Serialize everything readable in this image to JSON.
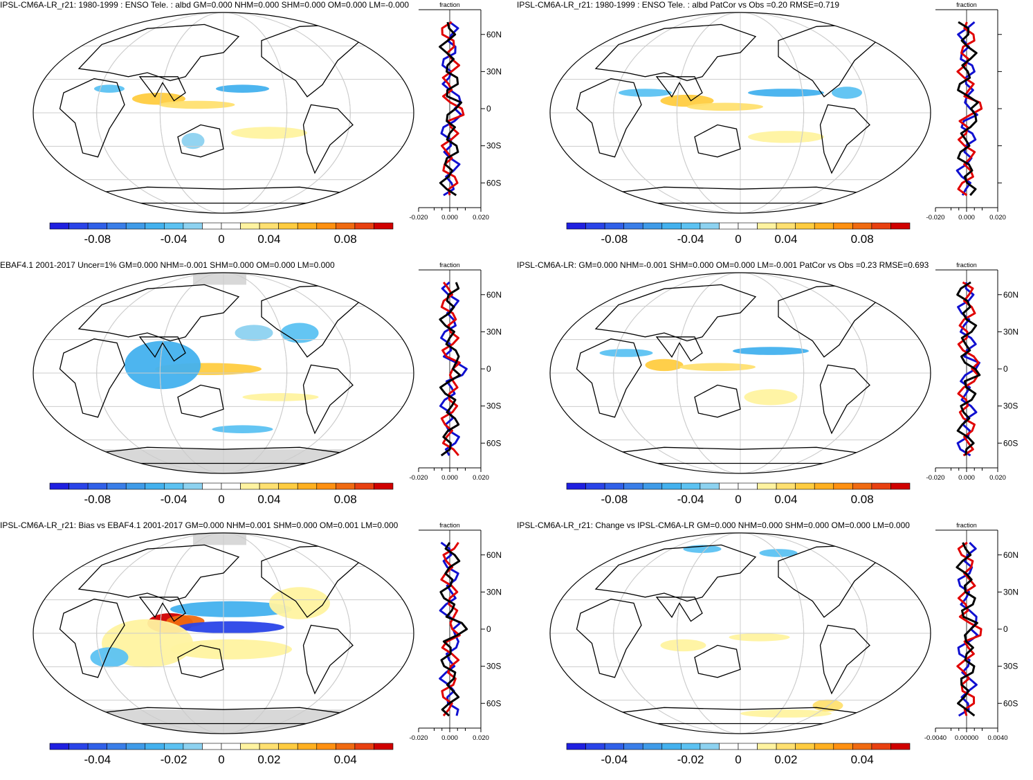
{
  "figure": {
    "panels": [
      {
        "id": "model-enso",
        "title": "IPSL-CM6A-LR_r21: 1980-1999 : ENSO Tele. : albd GM=0.000 NHM=0.000 SHM=0.000 OM=0.000 LM=-0.000",
        "profile_label": "fraction",
        "lat_labels": [
          "60N",
          "30N",
          "0",
          "30S",
          "60S"
        ],
        "profile_ticks": [
          "-0.020",
          "0.000",
          "0.020"
        ],
        "colorbar_labels": [
          "-0.08",
          "-0.04",
          "0",
          "0.04",
          "0.08"
        ]
      },
      {
        "id": "model-enso-patcor",
        "title": "IPSL-CM6A-LR_r21: 1980-1999 : ENSO Tele. : albd PatCor vs Obs =0.20 RMSE=0.719",
        "profile_label": "fraction",
        "lat_labels": [
          "",
          "",
          "",
          "",
          ""
        ],
        "profile_ticks": [
          "-0.020",
          "0.000",
          "0.020"
        ],
        "colorbar_labels": [
          "-0.08",
          "-0.04",
          "0",
          "0.04",
          "0.08"
        ]
      },
      {
        "id": "obs-ebaf",
        "title": "EBAF4.1 2001-2017 Uncer=1% GM=0.000 NHM=-0.001 SHM=0.000 OM=0.000 LM=0.000",
        "profile_label": "fraction",
        "lat_labels": [
          "60N",
          "30N",
          "0",
          "30S",
          "60S"
        ],
        "profile_ticks": [
          "-0.020",
          "0.000",
          "0.020"
        ],
        "colorbar_labels": [
          "-0.08",
          "-0.04",
          "0",
          "0.04",
          "0.08"
        ]
      },
      {
        "id": "model-ref",
        "title": "IPSL-CM6A-LR: GM=0.000 NHM=-0.001 SHM=0.000 OM=0.000 LM=-0.001 PatCor vs Obs =0.23 RMSE=0.693",
        "profile_label": "fraction",
        "lat_labels": [
          "60N",
          "30N",
          "0",
          "30S",
          "60S"
        ],
        "profile_ticks": [
          "-0.020",
          "0.000",
          "0.020"
        ],
        "colorbar_labels": [
          "-0.08",
          "-0.04",
          "0",
          "0.04",
          "0.08"
        ]
      },
      {
        "id": "bias",
        "title": "IPSL-CM6A-LR_r21: Bias vs EBAF4.1 2001-2017 GM=0.000 NHM=0.001 SHM=0.000 OM=0.001 LM=0.000",
        "profile_label": "fraction",
        "lat_labels": [
          "60N",
          "30N",
          "0",
          "30S",
          "60S"
        ],
        "profile_ticks": [
          "-0.020",
          "0.000",
          "0.020"
        ],
        "colorbar_labels": [
          "-0.04",
          "-0.02",
          "0",
          "0.02",
          "0.04"
        ]
      },
      {
        "id": "change",
        "title": "IPSL-CM6A-LR_r21: Change vs IPSL-CM6A-LR GM=0.000 NHM=0.000 SHM=0.000 OM=0.000 LM=0.000",
        "profile_label": "fraction",
        "lat_labels": [
          "60N",
          "30N",
          "0",
          "30S",
          "60S"
        ],
        "profile_ticks": [
          "-0.0040",
          "0.00000",
          "0.0040"
        ],
        "colorbar_labels": [
          "-0.04",
          "-0.02",
          "0",
          "0.02",
          "0.04"
        ]
      }
    ]
  },
  "colors": {
    "profile_series": [
      "#1010d0",
      "#e00000",
      "#000000"
    ],
    "colorbar": [
      "#2020e0",
      "#2a44e8",
      "#3060e8",
      "#3a7ee8",
      "#3f9be8",
      "#43b1ee",
      "#5cc2f2",
      "#8dd2f0",
      "#ffffff",
      "#ffffff",
      "#fff3a0",
      "#ffe070",
      "#ffcc40",
      "#ffb020",
      "#ff9010",
      "#f06a10",
      "#e84010",
      "#d00000"
    ]
  },
  "chart_data": [
    {
      "type": "heatmap",
      "title": "IPSL-CM6A-LR_r21: 1980-1999 : ENSO Tele. : albd GM=0.000 NHM=0.000 SHM=0.000 OM=0.000 LM=-0.000",
      "xlabel": "",
      "ylabel": "",
      "colorbar_range": [
        -0.1,
        0.1
      ],
      "profile_xlim": [
        -0.02,
        0.02
      ],
      "profile_ylim": [
        -80,
        80
      ]
    },
    {
      "type": "heatmap",
      "title": "IPSL-CM6A-LR_r21: 1980-1999 : ENSO Tele. : albd PatCor vs Obs =0.20 RMSE=0.719",
      "xlabel": "",
      "ylabel": "",
      "colorbar_range": [
        -0.1,
        0.1
      ],
      "profile_xlim": [
        -0.02,
        0.02
      ],
      "profile_ylim": [
        -80,
        80
      ]
    },
    {
      "type": "heatmap",
      "title": "EBAF4.1 2001-2017 Uncer=1% GM=0.000 NHM=-0.001 SHM=0.000 OM=0.000 LM=0.000",
      "xlabel": "",
      "ylabel": "",
      "colorbar_range": [
        -0.1,
        0.1
      ],
      "profile_xlim": [
        -0.02,
        0.02
      ],
      "profile_ylim": [
        -80,
        80
      ]
    },
    {
      "type": "heatmap",
      "title": "IPSL-CM6A-LR: GM=0.000 NHM=-0.001 SHM=0.000 OM=0.000 LM=-0.001 PatCor vs Obs =0.23 RMSE=0.693",
      "xlabel": "",
      "ylabel": "",
      "colorbar_range": [
        -0.1,
        0.1
      ],
      "profile_xlim": [
        -0.02,
        0.02
      ],
      "profile_ylim": [
        -80,
        80
      ]
    },
    {
      "type": "heatmap",
      "title": "IPSL-CM6A-LR_r21: Bias vs EBAF4.1 2001-2017 GM=0.000 NHM=0.001 SHM=0.000 OM=0.001 LM=0.000",
      "xlabel": "",
      "ylabel": "",
      "colorbar_range": [
        -0.05,
        0.05
      ],
      "profile_xlim": [
        -0.02,
        0.02
      ],
      "profile_ylim": [
        -80,
        80
      ]
    },
    {
      "type": "heatmap",
      "title": "IPSL-CM6A-LR_r21: Change vs IPSL-CM6A-LR GM=0.000 NHM=0.000 SHM=0.000 OM=0.000 LM=0.000",
      "xlabel": "",
      "ylabel": "",
      "colorbar_range": [
        -0.05,
        0.05
      ],
      "profile_xlim": [
        -0.006,
        0.006
      ],
      "profile_ylim": [
        -80,
        80
      ]
    }
  ]
}
